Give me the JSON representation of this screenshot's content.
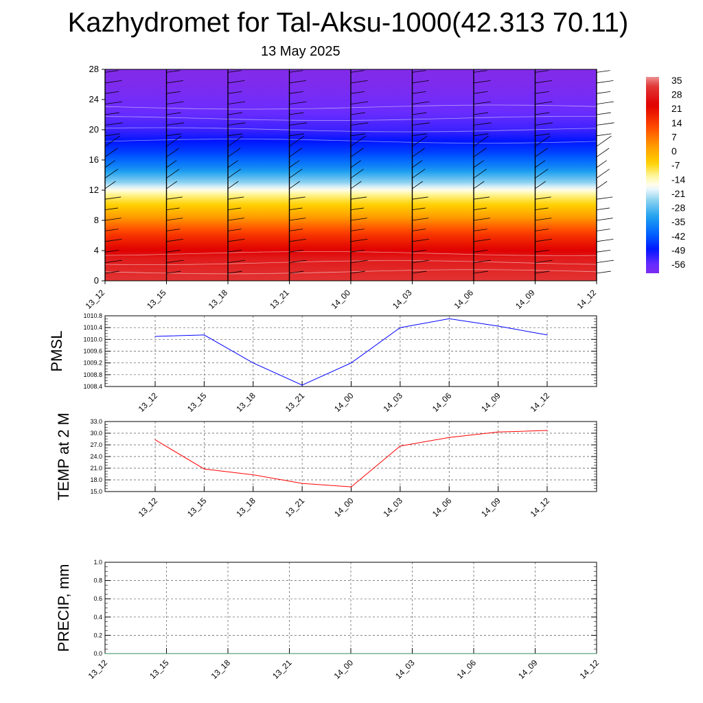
{
  "page": {
    "title": "Kazhydromet for Tal-Aksu-1000(42.313 70.11)",
    "subtitle": "13 May 2025"
  },
  "colors": {
    "pmsl_line": "#0000ff",
    "temp_line": "#ff0000",
    "precip_line": "#2e8b57",
    "grid": "#555555",
    "barb": "#000000"
  },
  "chart_data": [
    {
      "type": "heatmap",
      "name": "temperature-height",
      "title": "",
      "xlabel": "",
      "ylabel": "",
      "x_ticks": [
        "13_12",
        "13_15",
        "13_18",
        "13_21",
        "14_00",
        "14_03",
        "14_06",
        "14_09",
        "14_12"
      ],
      "ylim": [
        0,
        28
      ],
      "y_ticks": [
        0,
        4,
        8,
        12,
        16,
        20,
        24,
        28
      ],
      "colorbar": {
        "range": [
          -56,
          35
        ],
        "labels": [
          "35",
          "28",
          "21",
          "14",
          "7",
          "0",
          "-7",
          "-14",
          "-21",
          "-28",
          "-35",
          "-42",
          "-49",
          "-56"
        ],
        "stops": [
          {
            "v": -60,
            "c": "#8a2be2"
          },
          {
            "v": -52,
            "c": "#6a2cff"
          },
          {
            "v": -45,
            "c": "#0015ff"
          },
          {
            "v": -38,
            "c": "#0060ff"
          },
          {
            "v": -30,
            "c": "#1ea0f0"
          },
          {
            "v": -22,
            "c": "#8fd3f0"
          },
          {
            "v": -16,
            "c": "#ffffff"
          },
          {
            "v": -11,
            "c": "#fff7a0"
          },
          {
            "v": -5,
            "c": "#ffd200"
          },
          {
            "v": 3,
            "c": "#ff9a00"
          },
          {
            "v": 12,
            "c": "#ff4800"
          },
          {
            "v": 22,
            "c": "#e00000"
          },
          {
            "v": 31,
            "c": "#e23a3a"
          },
          {
            "v": 36,
            "c": "#f0a8a8"
          }
        ]
      },
      "profile": [
        {
          "h": 0,
          "t": 30
        },
        {
          "h": 3,
          "t": 26
        },
        {
          "h": 6,
          "t": 15
        },
        {
          "h": 9,
          "t": 0
        },
        {
          "h": 11.5,
          "t": -11
        },
        {
          "h": 13,
          "t": -22
        },
        {
          "h": 15,
          "t": -33
        },
        {
          "h": 17,
          "t": -41
        },
        {
          "h": 20,
          "t": -49
        },
        {
          "h": 23,
          "t": -53
        },
        {
          "h": 26,
          "t": -57
        },
        {
          "h": 28,
          "t": -58
        }
      ]
    },
    {
      "type": "line",
      "name": "pmsl",
      "ylabel": "PMSL",
      "x": [
        "13_12",
        "13_15",
        "13_18",
        "13_21",
        "14_00",
        "14_03",
        "14_06",
        "14_09",
        "14_12"
      ],
      "values": [
        1010.1,
        1010.15,
        1009.2,
        1008.45,
        1009.2,
        1010.4,
        1010.7,
        1010.45,
        1010.15
      ],
      "ylim": [
        1008.4,
        1010.8
      ],
      "y_ticks": [
        "1010.8",
        "1010.4",
        "1010.0",
        "1009.6",
        "1009.2",
        "1008.8",
        "1008.4"
      ]
    },
    {
      "type": "line",
      "name": "temp2m",
      "ylabel": "TEMP at 2 M",
      "x": [
        "13_12",
        "13_15",
        "13_18",
        "13_21",
        "14_00",
        "14_03",
        "14_06",
        "14_09",
        "14_12"
      ],
      "values": [
        28.3,
        20.8,
        19.3,
        17.1,
        16.2,
        26.7,
        28.9,
        30.3,
        30.7
      ],
      "ylim": [
        15.0,
        33.0
      ],
      "y_ticks": [
        "33.0",
        "30.0",
        "27.0",
        "24.0",
        "21.0",
        "18.0",
        "15.0"
      ]
    },
    {
      "type": "line",
      "name": "precip",
      "ylabel": "PRECIP, mm",
      "x": [
        "13_12",
        "13_15",
        "13_18",
        "13_21",
        "14_00",
        "14_03",
        "14_06",
        "14_09",
        "14_12"
      ],
      "values": [
        0,
        0,
        0,
        0,
        0,
        0,
        0,
        0,
        0
      ],
      "ylim": [
        0.0,
        1.0
      ],
      "y_ticks": [
        "1.0",
        "0.8",
        "0.6",
        "0.4",
        "0.2",
        "0.0"
      ]
    }
  ]
}
